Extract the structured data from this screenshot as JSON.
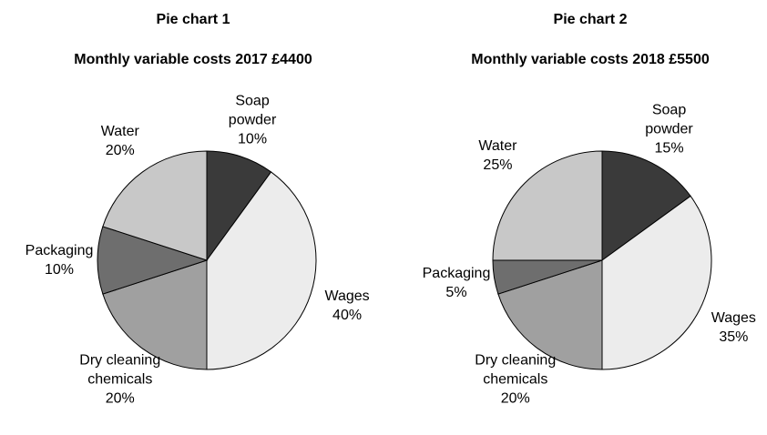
{
  "chart_data": [
    {
      "type": "pie",
      "title": "Pie chart 1",
      "subtitle": "Monthly variable costs 2017 £4400",
      "categories": [
        "Soap powder",
        "Wages",
        "Dry cleaning chemicals",
        "Packaging",
        "Water"
      ],
      "values": [
        10,
        40,
        20,
        10,
        20
      ],
      "value_labels": [
        "10%",
        "40%",
        "20%",
        "10%",
        "20%"
      ],
      "colors": [
        "#3a3a3a",
        "#ececec",
        "#a0a0a0",
        "#6e6e6e",
        "#c8c8c8"
      ]
    },
    {
      "type": "pie",
      "title": "Pie chart 2",
      "subtitle": "Monthly variable costs 2018 £5500",
      "categories": [
        "Soap powder",
        "Wages",
        "Dry cleaning chemicals",
        "Packaging",
        "Water"
      ],
      "values": [
        15,
        35,
        20,
        5,
        25
      ],
      "value_labels": [
        "15%",
        "35%",
        "20%",
        "5%",
        "25%"
      ],
      "colors": [
        "#3a3a3a",
        "#ececec",
        "#a0a0a0",
        "#6e6e6e",
        "#c8c8c8"
      ]
    }
  ]
}
